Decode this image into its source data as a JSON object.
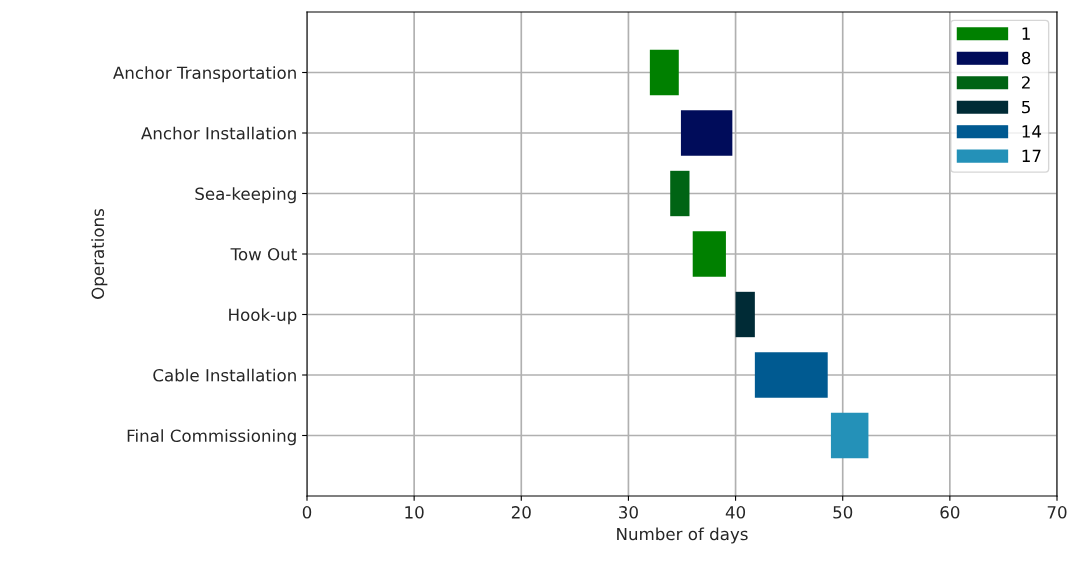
{
  "chart_data": {
    "type": "bar",
    "orientation": "horizontal",
    "xlabel": "Number of days",
    "ylabel": "Operations",
    "categories": [
      "Anchor Transportation",
      "Anchor Installation",
      "Sea-keeping",
      "Tow Out",
      "Hook-up",
      "Cable Installation",
      "Final Commissioning"
    ],
    "series": [
      {
        "name": "1",
        "color": "#008000",
        "values": [
          2.7,
          null,
          null,
          3.1,
          null,
          null,
          null
        ],
        "base": [
          32.0,
          null,
          null,
          36.0,
          null,
          null,
          null
        ]
      },
      {
        "name": "8",
        "color": "#000c5a",
        "values": [
          null,
          4.8,
          null,
          null,
          null,
          null,
          null
        ],
        "base": [
          null,
          34.9,
          null,
          null,
          null,
          null,
          null
        ]
      },
      {
        "name": "2",
        "color": "#006414",
        "values": [
          null,
          null,
          1.8,
          null,
          null,
          null,
          null
        ],
        "base": [
          null,
          null,
          33.9,
          null,
          null,
          null,
          null
        ]
      },
      {
        "name": "5",
        "color": "#002b36",
        "values": [
          null,
          null,
          null,
          null,
          1.8,
          null,
          null
        ],
        "base": [
          null,
          null,
          null,
          null,
          40.0,
          null,
          null
        ]
      },
      {
        "name": "14",
        "color": "#005a91",
        "values": [
          null,
          null,
          null,
          null,
          null,
          6.8,
          null
        ],
        "base": [
          null,
          null,
          null,
          null,
          null,
          41.8,
          null
        ]
      },
      {
        "name": "17",
        "color": "#2491b8",
        "values": [
          null,
          null,
          null,
          null,
          null,
          null,
          3.5
        ],
        "base": [
          null,
          null,
          null,
          null,
          null,
          null,
          48.9
        ]
      }
    ],
    "xlim": [
      0,
      70
    ],
    "xticks": [
      0,
      10,
      20,
      30,
      40,
      50,
      60,
      70
    ],
    "grid": true,
    "legend": "top right"
  }
}
